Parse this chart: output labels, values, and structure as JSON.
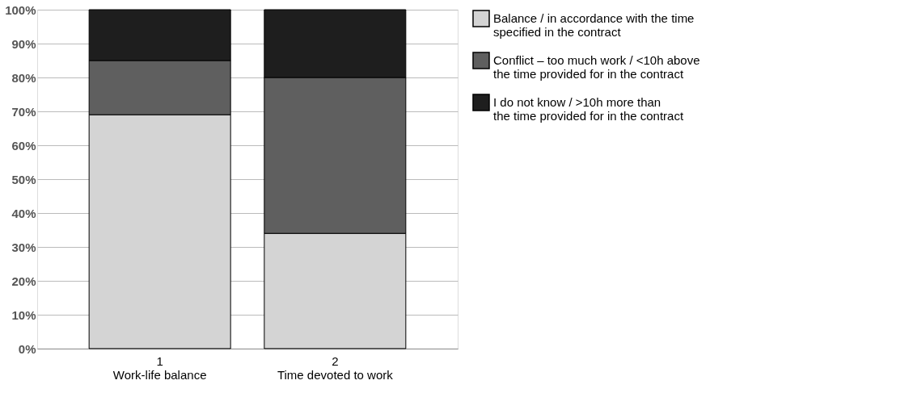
{
  "chart_data": {
    "type": "bar",
    "stacked": true,
    "categories": [
      "1\nWork-life balance",
      "2\nTime devoted to work"
    ],
    "series": [
      {
        "name": "Balance / in accordance with the time\nspecified in the contract",
        "color": "#d4d4d4",
        "values": [
          69,
          34
        ]
      },
      {
        "name": "Conflict – too much work / <10h above\nthe time provided for in the contract",
        "color": "#5f5f5f",
        "values": [
          16,
          46
        ]
      },
      {
        "name": "I do not know / >10h more than\nthe time provided for in the contract",
        "color": "#1e1e1e",
        "values": [
          15,
          20
        ]
      }
    ],
    "ylim": [
      0,
      100
    ],
    "yticks": [
      {
        "value": 0,
        "label": "0%"
      },
      {
        "value": 10,
        "label": "10%"
      },
      {
        "value": 20,
        "label": "20%"
      },
      {
        "value": 30,
        "label": "30%"
      },
      {
        "value": 40,
        "label": "40%"
      },
      {
        "value": 50,
        "label": "50%"
      },
      {
        "value": 60,
        "label": "60%"
      },
      {
        "value": 70,
        "label": "70%"
      },
      {
        "value": 80,
        "label": "80%"
      },
      {
        "value": 90,
        "label": "90%"
      },
      {
        "value": 100,
        "label": "100%"
      }
    ],
    "grid": "y",
    "legend": "right"
  }
}
